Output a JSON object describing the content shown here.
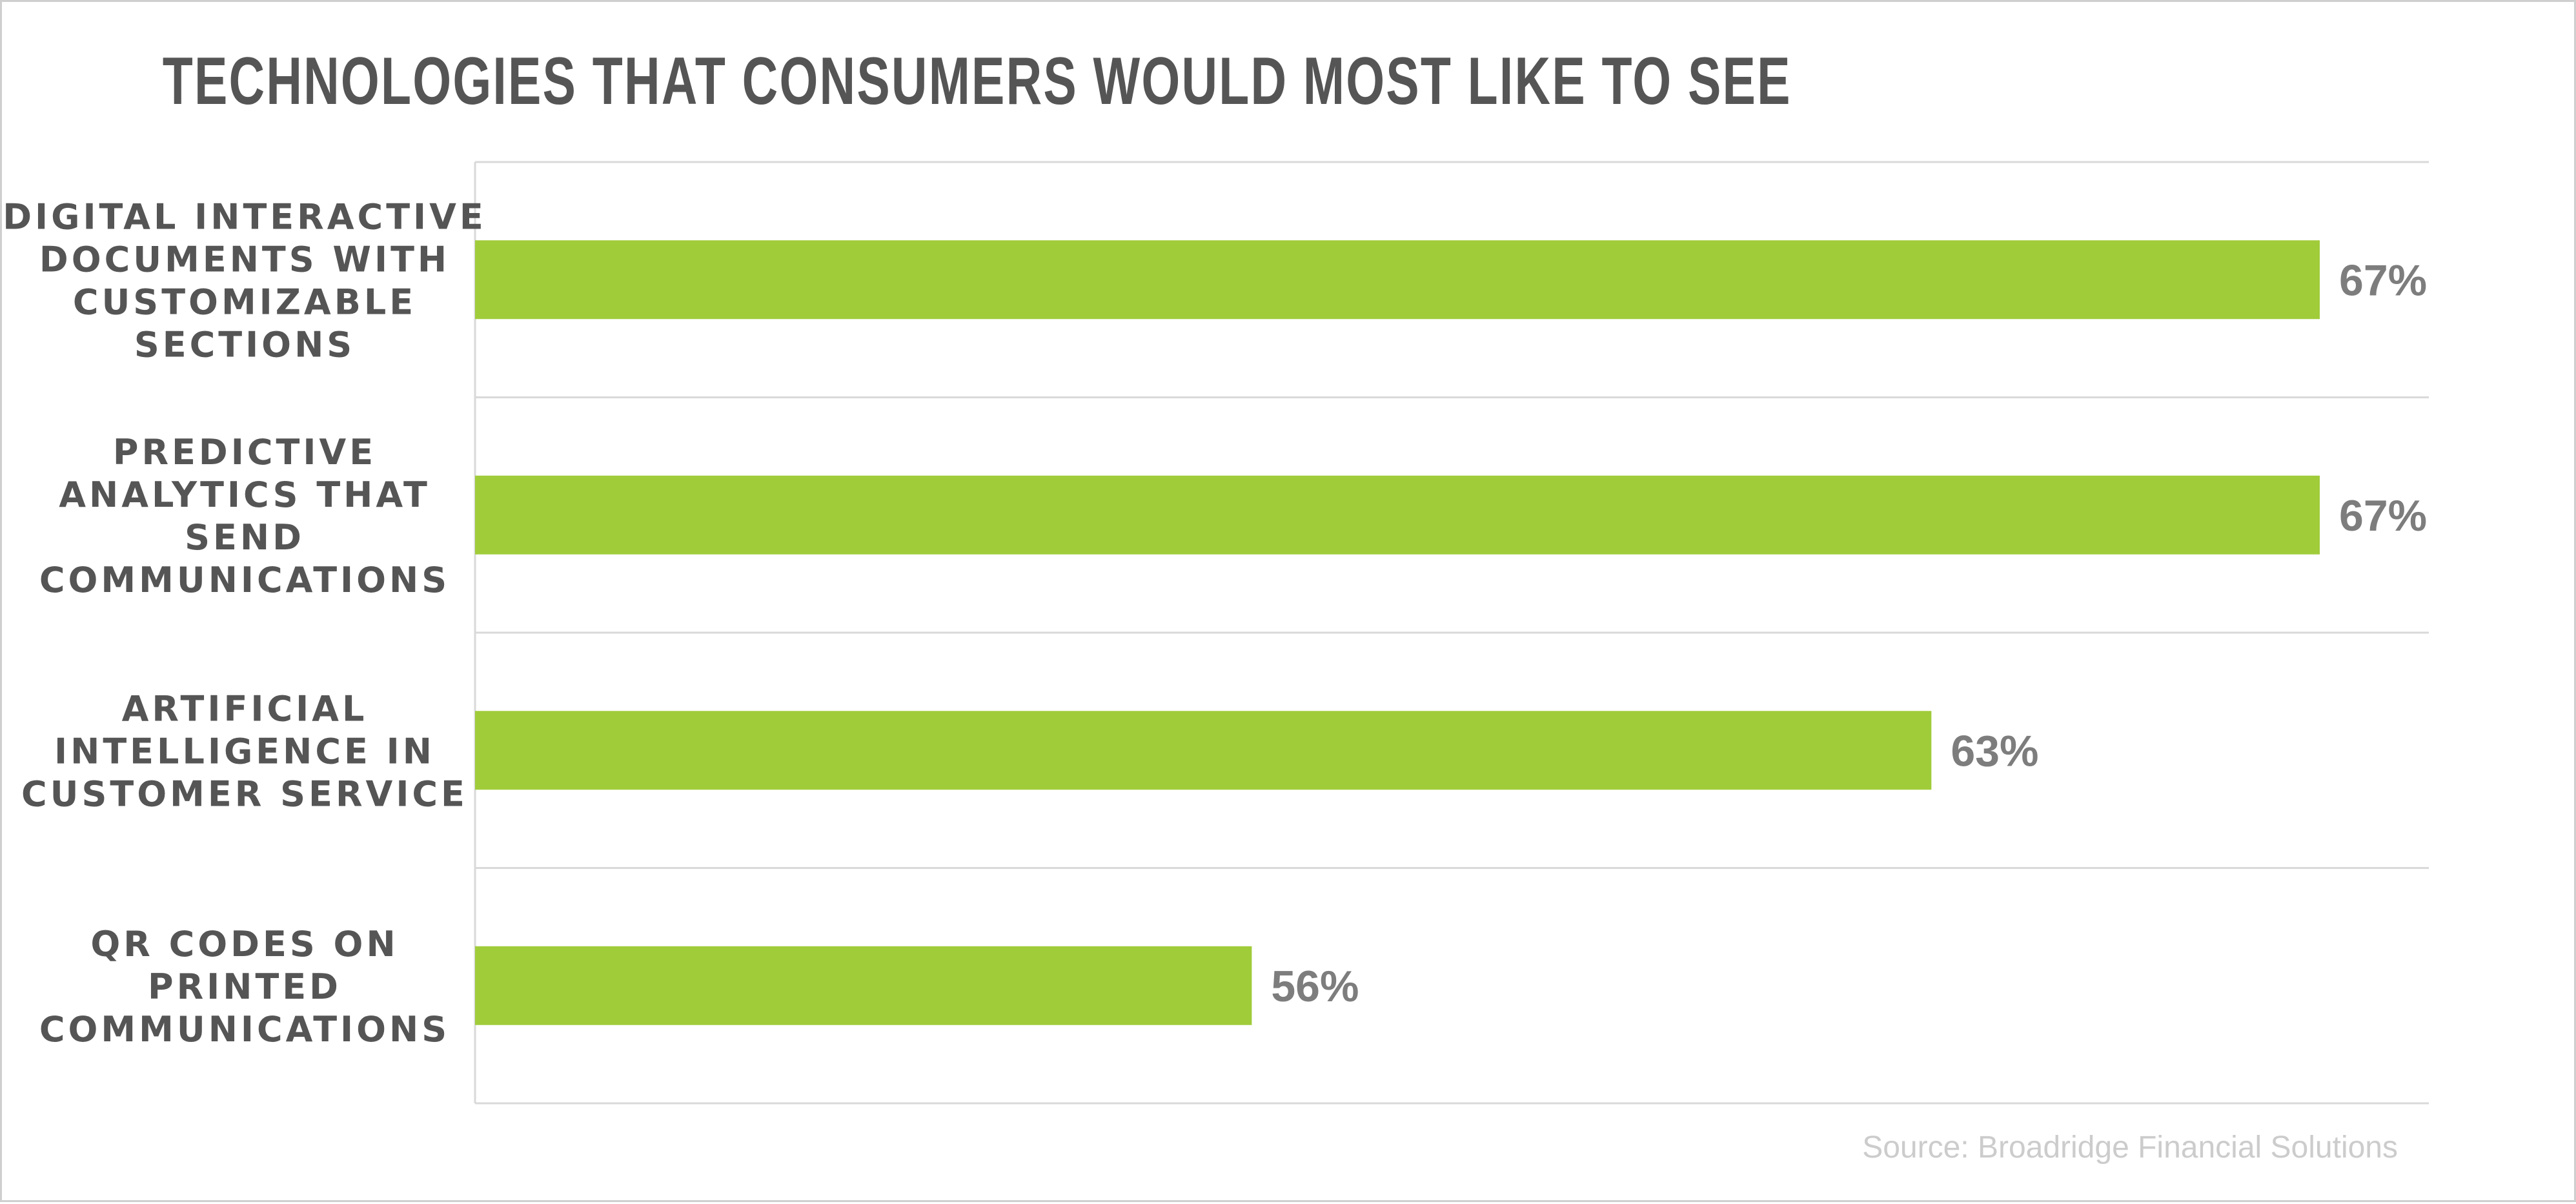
{
  "chart_data": {
    "type": "bar",
    "orientation": "horizontal",
    "title": "TECHNOLOGIES THAT CONSUMERS WOULD MOST LIKE TO SEE",
    "categories": [
      [
        "DIGITAL INTERACTIVE",
        "DOCUMENTS WITH",
        "CUSTOMIZABLE",
        "SECTIONS"
      ],
      [
        "PREDICTIVE",
        "ANALYTICS THAT",
        "SEND",
        "COMMUNICATIONS"
      ],
      [
        "ARTIFICIAL",
        "INTELLIGENCE IN",
        "CUSTOMER SERVICE"
      ],
      [
        "QR CODES ON",
        "PRINTED",
        "COMMUNICATIONS"
      ]
    ],
    "values": [
      67,
      67,
      63,
      56
    ],
    "value_labels": [
      "67%",
      "67%",
      "63%",
      "56%"
    ],
    "unit": "%",
    "xlim": [
      48,
      69
    ],
    "grid": true,
    "colors": {
      "bar": "#a0cc3a",
      "value_label": "#7d7d7d",
      "category_label": "#555555"
    },
    "source": "Source: Broadridge Financial Solutions"
  }
}
